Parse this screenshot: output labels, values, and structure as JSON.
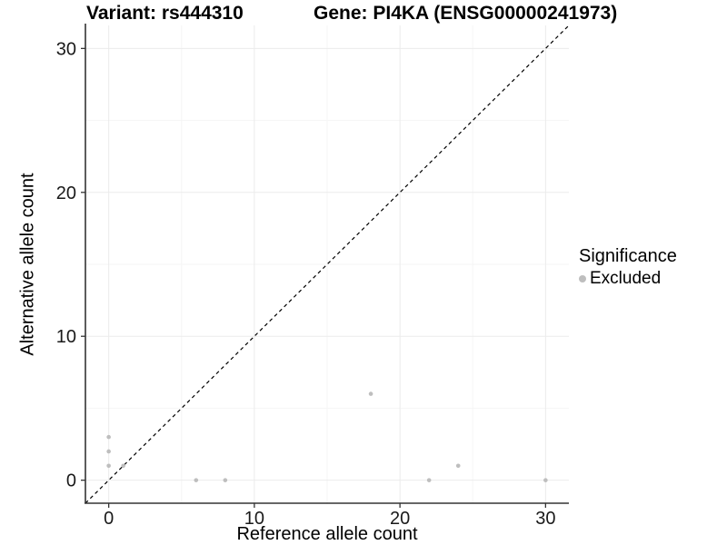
{
  "chart_data": {
    "type": "scatter",
    "title_left": "Variant: rs444310",
    "title_right": "Gene: PI4KA (ENSG00000241973)",
    "xlabel": "Reference allele count",
    "ylabel": "Alternative allele count",
    "xlim": [
      -1.6,
      31.6
    ],
    "ylim": [
      -1.6,
      31.6
    ],
    "x_major_ticks": [
      0,
      10,
      20,
      30
    ],
    "y_major_ticks": [
      0,
      10,
      20,
      30
    ],
    "x_minor_ticks": [
      5,
      15,
      25
    ],
    "y_minor_ticks": [
      5,
      15,
      25
    ],
    "grid": true,
    "identity_line": {
      "style": "dashed",
      "slope": 1,
      "intercept": 0,
      "color": "#000000"
    },
    "series": [
      {
        "name": "Excluded",
        "color": "#BEBEBE",
        "points": [
          {
            "x": 0,
            "y": 1
          },
          {
            "x": 0,
            "y": 2
          },
          {
            "x": 0,
            "y": 3
          },
          {
            "x": 1,
            "y": 1
          },
          {
            "x": 6,
            "y": 0
          },
          {
            "x": 8,
            "y": 0
          },
          {
            "x": 18,
            "y": 6
          },
          {
            "x": 22,
            "y": 0
          },
          {
            "x": 24,
            "y": 1
          },
          {
            "x": 30,
            "y": 0
          }
        ]
      }
    ],
    "legend": {
      "title": "Significance",
      "position": "right",
      "entries": [
        {
          "label": "Excluded",
          "color": "#BEBEBE"
        }
      ]
    },
    "colors": {
      "background": "#FFFFFF",
      "grid_major": "#EBEBEB",
      "grid_minor": "#F5F5F5",
      "axis_line": "#333333",
      "tick_mark": "#333333",
      "tick_label": "#1A1A1A",
      "point": "#BEBEBE",
      "identity_line": "#000000"
    }
  }
}
